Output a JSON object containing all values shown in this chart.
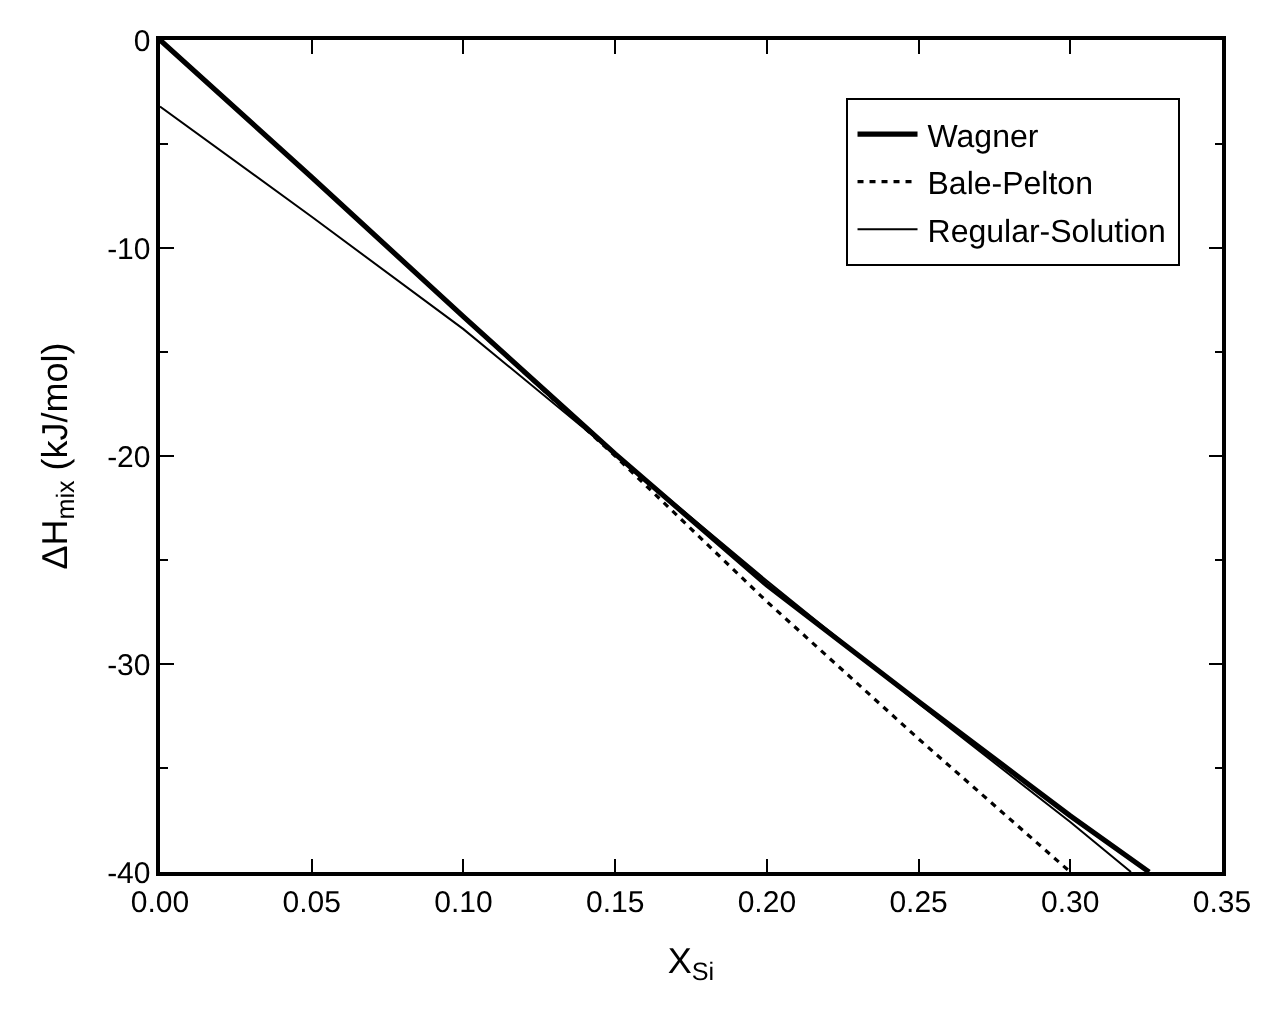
{
  "chart_data": {
    "type": "line",
    "xlabel": "X$_{Si}$",
    "ylabel": "ΔH$_{mix}$ (kJ/mol)",
    "xlim": [
      0,
      0.35
    ],
    "xticks": [
      {
        "value": 0,
        "label": "0.00"
      },
      {
        "value": 0.05,
        "label": "0.05"
      },
      {
        "value": 0.1,
        "label": "0.10"
      },
      {
        "value": 0.15,
        "label": "0.15"
      },
      {
        "value": 0.2,
        "label": "0.20"
      },
      {
        "value": 0.25,
        "label": "0.25"
      },
      {
        "value": 0.3,
        "label": "0.30"
      },
      {
        "value": 0.35,
        "label": "0.35"
      }
    ],
    "ylim": [
      -40,
      0
    ],
    "yticks": [
      -40,
      -30,
      -20,
      -10,
      0
    ],
    "legend": "top right",
    "marker": "none",
    "series": [
      {
        "name": "Wagner",
        "color": "#000000",
        "line_style": "solid",
        "x": [
          0,
          0.05,
          0.1,
          0.15,
          0.2,
          0.25,
          0.3,
          0.326
        ],
        "values": [
          0,
          -6.6,
          -13.3,
          -19.9,
          -26.2,
          -31.8,
          -37.3,
          -40
        ]
      },
      {
        "name": "Bale-Pelton",
        "color": "#000000",
        "line_style": "dotted",
        "x": [
          0,
          0.05,
          0.1,
          0.15,
          0.2,
          0.25,
          0.3
        ],
        "values": [
          0,
          -6.6,
          -13.3,
          -20.0,
          -27.0,
          -33.6,
          -40
        ]
      },
      {
        "name": "Regular-Solution",
        "color": "#000000",
        "line_style": "solid",
        "x": [
          0,
          0.05,
          0.1,
          0.15,
          0.2,
          0.25,
          0.3,
          0.32
        ],
        "values": [
          -3.2,
          -8.5,
          -13.9,
          -19.9,
          -26.0,
          -31.9,
          -37.6,
          -40
        ]
      }
    ]
  }
}
